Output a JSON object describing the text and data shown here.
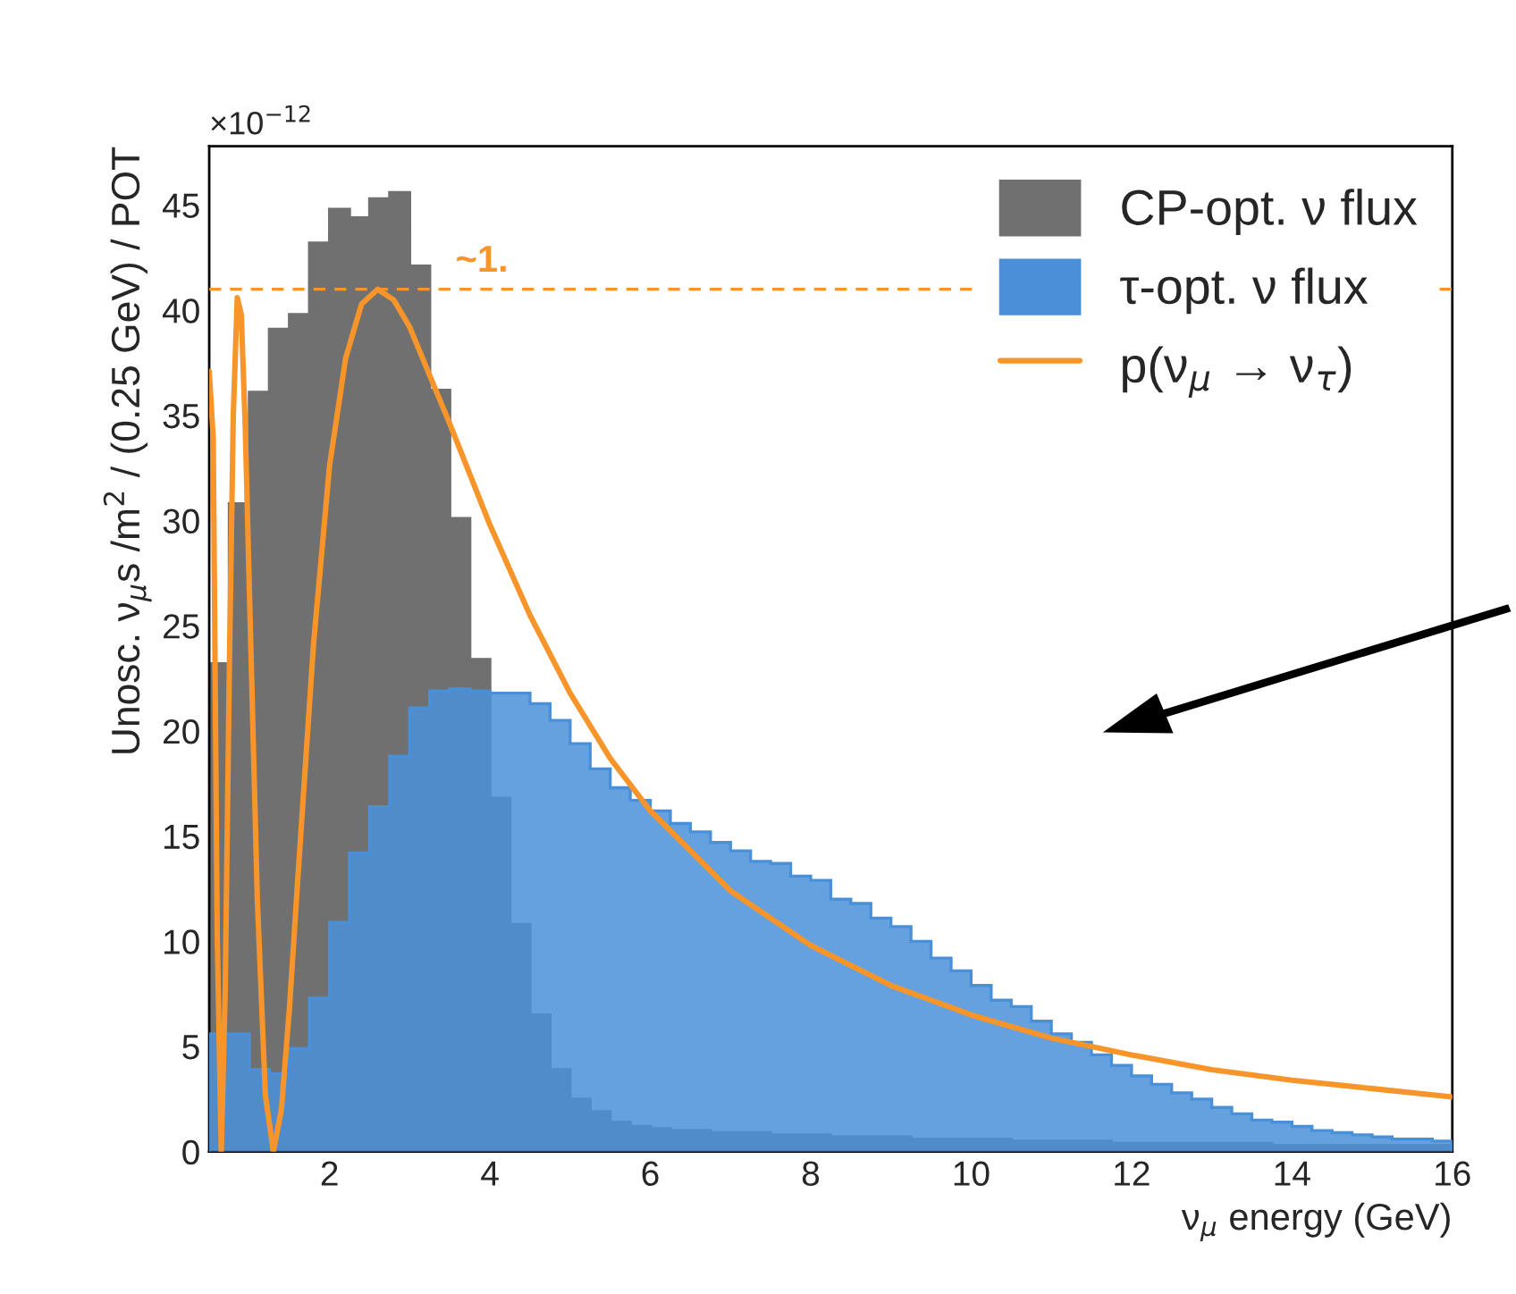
{
  "chart_data": {
    "type": "histogram",
    "xlabel": "ν$_{μ}$ energy (GeV)",
    "ylabel": "Unosc. ν$_{μ}$s /m$^{2}$ / (0.25 GeV) / POT",
    "annotations": [
      "×10$^{−12}$",
      {
        "text": "~1.",
        "x": 3.9,
        "y": 41
      }
    ],
    "bins": [
      0.5,
      0.75,
      1.0,
      1.25,
      1.5,
      1.75,
      2.0,
      2.25,
      2.5,
      2.75,
      3.0,
      3.25,
      3.5,
      3.75,
      4.0,
      4.25,
      4.5,
      4.75,
      5.0,
      5.25,
      5.5,
      5.75,
      6.0,
      6.25,
      6.5,
      6.75,
      7.0,
      7.25,
      7.5,
      7.75,
      8.0,
      8.25,
      8.5,
      8.75,
      9.0,
      9.25,
      9.5,
      9.75,
      10.0,
      10.25,
      10.5,
      10.75,
      11.0,
      11.25,
      11.5,
      11.75,
      12.0,
      12.25,
      12.5,
      12.75,
      13.0,
      13.25,
      13.5,
      13.75,
      14.0,
      14.25,
      14.5,
      14.75,
      15.0,
      15.25,
      15.5,
      15.75,
      16.0
    ],
    "series": [
      {
        "name": "CP-opt. ν flux",
        "color": "#707070",
        "values": [
          23.2,
          30.8,
          36.1,
          39.1,
          39.8,
          43.2,
          44.8,
          44.4,
          45.3,
          45.6,
          42.1,
          36.2,
          30.1,
          23.4,
          16.8,
          10.8,
          6.5,
          3.9,
          2.5,
          1.9,
          1.4,
          1.2,
          1.1,
          1.0,
          1.0,
          0.9,
          0.9,
          0.9,
          0.8,
          0.8,
          0.8,
          0.7,
          0.7,
          0.7,
          0.7,
          0.6,
          0.6,
          0.6,
          0.6,
          0.6,
          0.5,
          0.5,
          0.5,
          0.5,
          0.5,
          0.4,
          0.4,
          0.4,
          0.4,
          0.4,
          0.4,
          0.4,
          0.4,
          0.3,
          0.3,
          0.3,
          0.3,
          0.3,
          0.3,
          0.3,
          0.3,
          0.3
        ]
      },
      {
        "name": "τ-opt. ν flux",
        "color": "#4a90d9",
        "values": [
          5.6,
          5.6,
          3.9,
          3.7,
          4.9,
          7.3,
          10.9,
          14.2,
          16.4,
          18.8,
          21.1,
          21.9,
          22.0,
          21.9,
          21.8,
          21.8,
          21.3,
          20.5,
          19.4,
          18.2,
          17.3,
          16.7,
          16.2,
          15.6,
          15.2,
          14.7,
          14.3,
          13.8,
          13.7,
          13.1,
          12.9,
          12.0,
          11.8,
          11.1,
          10.7,
          10.0,
          9.2,
          8.6,
          7.9,
          7.2,
          6.9,
          6.2,
          5.6,
          5.2,
          4.6,
          4.1,
          3.6,
          3.2,
          2.8,
          2.5,
          2.1,
          1.8,
          1.5,
          1.4,
          1.2,
          1.0,
          0.9,
          0.8,
          0.7,
          0.6,
          0.6,
          0.5
        ]
      },
      {
        "name": "p(ν$_{μ}$ → ν$_{τ}$)",
        "type": "line",
        "color": "#f7952a",
        "x": [
          0.5,
          0.55,
          0.6,
          0.65,
          0.7,
          0.75,
          0.8,
          0.85,
          0.9,
          0.95,
          1.0,
          1.1,
          1.2,
          1.3,
          1.4,
          1.5,
          1.6,
          1.8,
          2.0,
          2.2,
          2.4,
          2.6,
          2.8,
          3.0,
          3.5,
          4.0,
          4.5,
          5.0,
          5.5,
          6.0,
          7.0,
          8.0,
          9.0,
          10.0,
          11.0,
          12.0,
          13.0,
          14.0,
          15.0,
          16.0
        ],
        "values": [
          37.1,
          33.9,
          10.3,
          0,
          7.7,
          22.7,
          35.0,
          40.6,
          39.8,
          34.4,
          26.8,
          12.0,
          2.7,
          0,
          2.0,
          6.8,
          12.7,
          24.1,
          32.6,
          37.7,
          40.3,
          41.0,
          40.5,
          39.2,
          34.6,
          29.8,
          25.5,
          21.8,
          18.7,
          16.2,
          12.4,
          9.8,
          7.9,
          6.5,
          5.4,
          4.6,
          3.9,
          3.4,
          3.0,
          2.6
        ]
      }
    ],
    "ref_lines": [
      {
        "axis": "y",
        "value": 41,
        "color": "#f7952a",
        "line_style": "dashed"
      }
    ],
    "xlim": [
      0.5,
      16
    ],
    "ylim": [
      0,
      47.8
    ],
    "xticks": [
      2,
      4,
      6,
      8,
      10,
      12,
      14,
      16
    ],
    "yticks": [
      0,
      5,
      10,
      15,
      20,
      25,
      30,
      35,
      40,
      45
    ],
    "legend": "top right",
    "grid": false
  }
}
